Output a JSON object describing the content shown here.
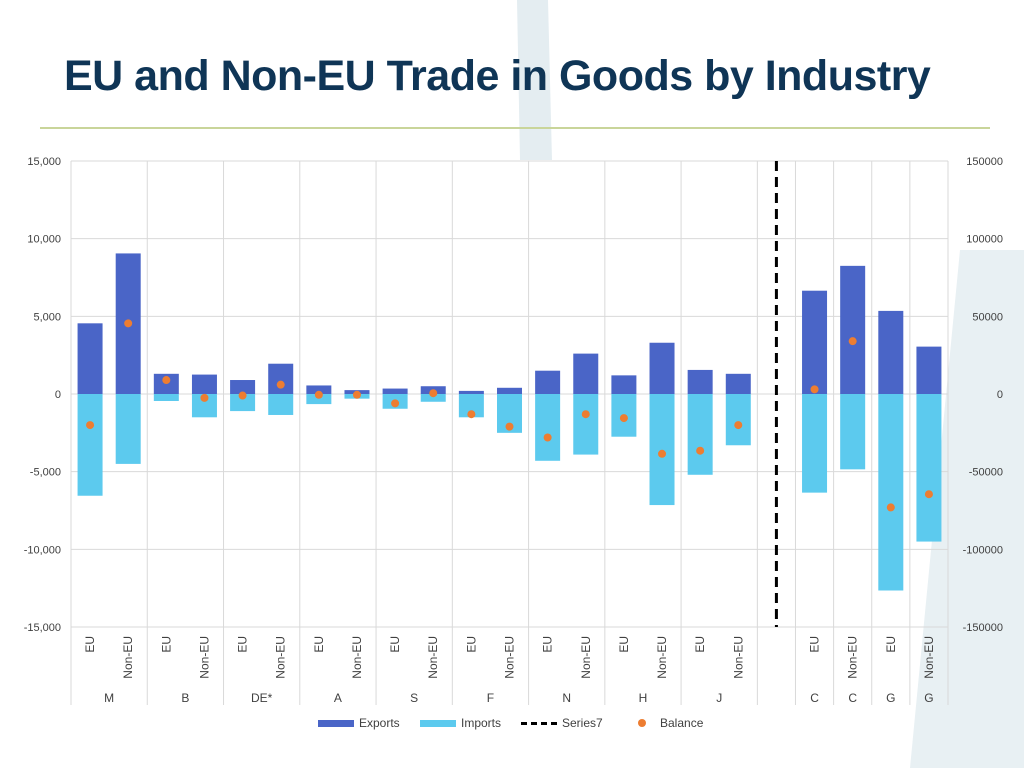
{
  "slide": {
    "title": "EU and Non-EU Trade in Goods by Industry"
  },
  "colors": {
    "title": "#0f3556",
    "rule": "#c9d59a",
    "exports": "#4a65c7",
    "imports": "#5ccaee",
    "balance": "#ed7d31",
    "series7": "#000000",
    "grid": "#d9d9d9",
    "deco": "#dfe9ee"
  },
  "chart_data": {
    "type": "bar",
    "title": "",
    "left_axis": {
      "ylim": [
        -15000,
        15000
      ],
      "ticks": [
        "15,000",
        "10,000",
        "5,000",
        "0",
        "-5,000",
        "-10,000",
        "-15,000"
      ]
    },
    "right_axis": {
      "ylim": [
        -150000,
        150000
      ],
      "ticks": [
        "150000",
        "100000",
        "50000",
        "0",
        "-50000",
        "-100000",
        "-150000"
      ]
    },
    "categories": [
      {
        "label": "EU",
        "group": "M",
        "axis": "left"
      },
      {
        "label": "Non-EU",
        "group": "M",
        "axis": "left"
      },
      {
        "label": "EU",
        "group": "B",
        "axis": "left"
      },
      {
        "label": "Non-EU",
        "group": "B",
        "axis": "left"
      },
      {
        "label": "EU",
        "group": "DE*",
        "axis": "left"
      },
      {
        "label": "Non-EU",
        "group": "DE*",
        "axis": "left"
      },
      {
        "label": "EU",
        "group": "A",
        "axis": "left"
      },
      {
        "label": "Non-EU",
        "group": "A",
        "axis": "left"
      },
      {
        "label": "EU",
        "group": "S",
        "axis": "left"
      },
      {
        "label": "Non-EU",
        "group": "S",
        "axis": "left"
      },
      {
        "label": "EU",
        "group": "F",
        "axis": "left"
      },
      {
        "label": "Non-EU",
        "group": "F",
        "axis": "left"
      },
      {
        "label": "EU",
        "group": "N",
        "axis": "left"
      },
      {
        "label": "Non-EU",
        "group": "N",
        "axis": "left"
      },
      {
        "label": "EU",
        "group": "H",
        "axis": "left"
      },
      {
        "label": "Non-EU",
        "group": "H",
        "axis": "left"
      },
      {
        "label": "EU",
        "group": "J",
        "axis": "left"
      },
      {
        "label": "Non-EU",
        "group": "J",
        "axis": "left"
      },
      {
        "label": "",
        "group": "",
        "axis": "none"
      },
      {
        "label": "EU",
        "group": "C",
        "axis": "right"
      },
      {
        "label": "Non-EU",
        "group": "C",
        "axis": "right"
      },
      {
        "label": "EU",
        "group": "G",
        "axis": "right"
      },
      {
        "label": "Non-EU",
        "group": "G",
        "axis": "right"
      }
    ],
    "group_labels": [
      {
        "label": "M",
        "span": [
          0,
          1
        ]
      },
      {
        "label": "B",
        "span": [
          2,
          3
        ]
      },
      {
        "label": "DE*",
        "span": [
          4,
          5
        ]
      },
      {
        "label": "A",
        "span": [
          6,
          7
        ]
      },
      {
        "label": "S",
        "span": [
          8,
          9
        ]
      },
      {
        "label": "F",
        "span": [
          10,
          11
        ]
      },
      {
        "label": "N",
        "span": [
          12,
          13
        ]
      },
      {
        "label": "H",
        "span": [
          14,
          15
        ]
      },
      {
        "label": "J",
        "span": [
          16,
          17
        ]
      },
      {
        "label": "C",
        "span": [
          19,
          19
        ]
      },
      {
        "label": "C",
        "span": [
          20,
          20
        ]
      },
      {
        "label": "G",
        "span": [
          21,
          21
        ]
      },
      {
        "label": "G",
        "span": [
          22,
          22
        ]
      }
    ],
    "series": [
      {
        "name": "Exports",
        "kind": "bar",
        "values": [
          4550,
          9050,
          1300,
          1250,
          900,
          1950,
          550,
          250,
          350,
          500,
          200,
          400,
          1500,
          2600,
          1200,
          3300,
          1550,
          1300,
          null,
          66500,
          82500,
          53500,
          30500
        ]
      },
      {
        "name": "Imports",
        "kind": "bar",
        "values": [
          -6550,
          -4500,
          -450,
          -1500,
          -1100,
          -1350,
          -650,
          -300,
          -950,
          -500,
          -1500,
          -2500,
          -4300,
          -3900,
          -2750,
          -7150,
          -5200,
          -3300,
          null,
          -63500,
          -48500,
          -126500,
          -95000
        ]
      },
      {
        "name": "Balance",
        "kind": "dot",
        "values": [
          -2000,
          4550,
          900,
          -250,
          -100,
          600,
          -50,
          -50,
          -600,
          50,
          -1300,
          -2100,
          -2800,
          -1300,
          -1550,
          -3850,
          -3650,
          -2000,
          null,
          3000,
          34000,
          -73000,
          -64500
        ]
      }
    ],
    "reference_line": {
      "name": "Series7",
      "style": "dashed",
      "position_category": 18
    },
    "legend": [
      {
        "name": "Exports",
        "marker": "bar"
      },
      {
        "name": "Imports",
        "marker": "bar"
      },
      {
        "name": "Series7",
        "marker": "dash"
      },
      {
        "name": "Balance",
        "marker": "dot"
      }
    ]
  }
}
